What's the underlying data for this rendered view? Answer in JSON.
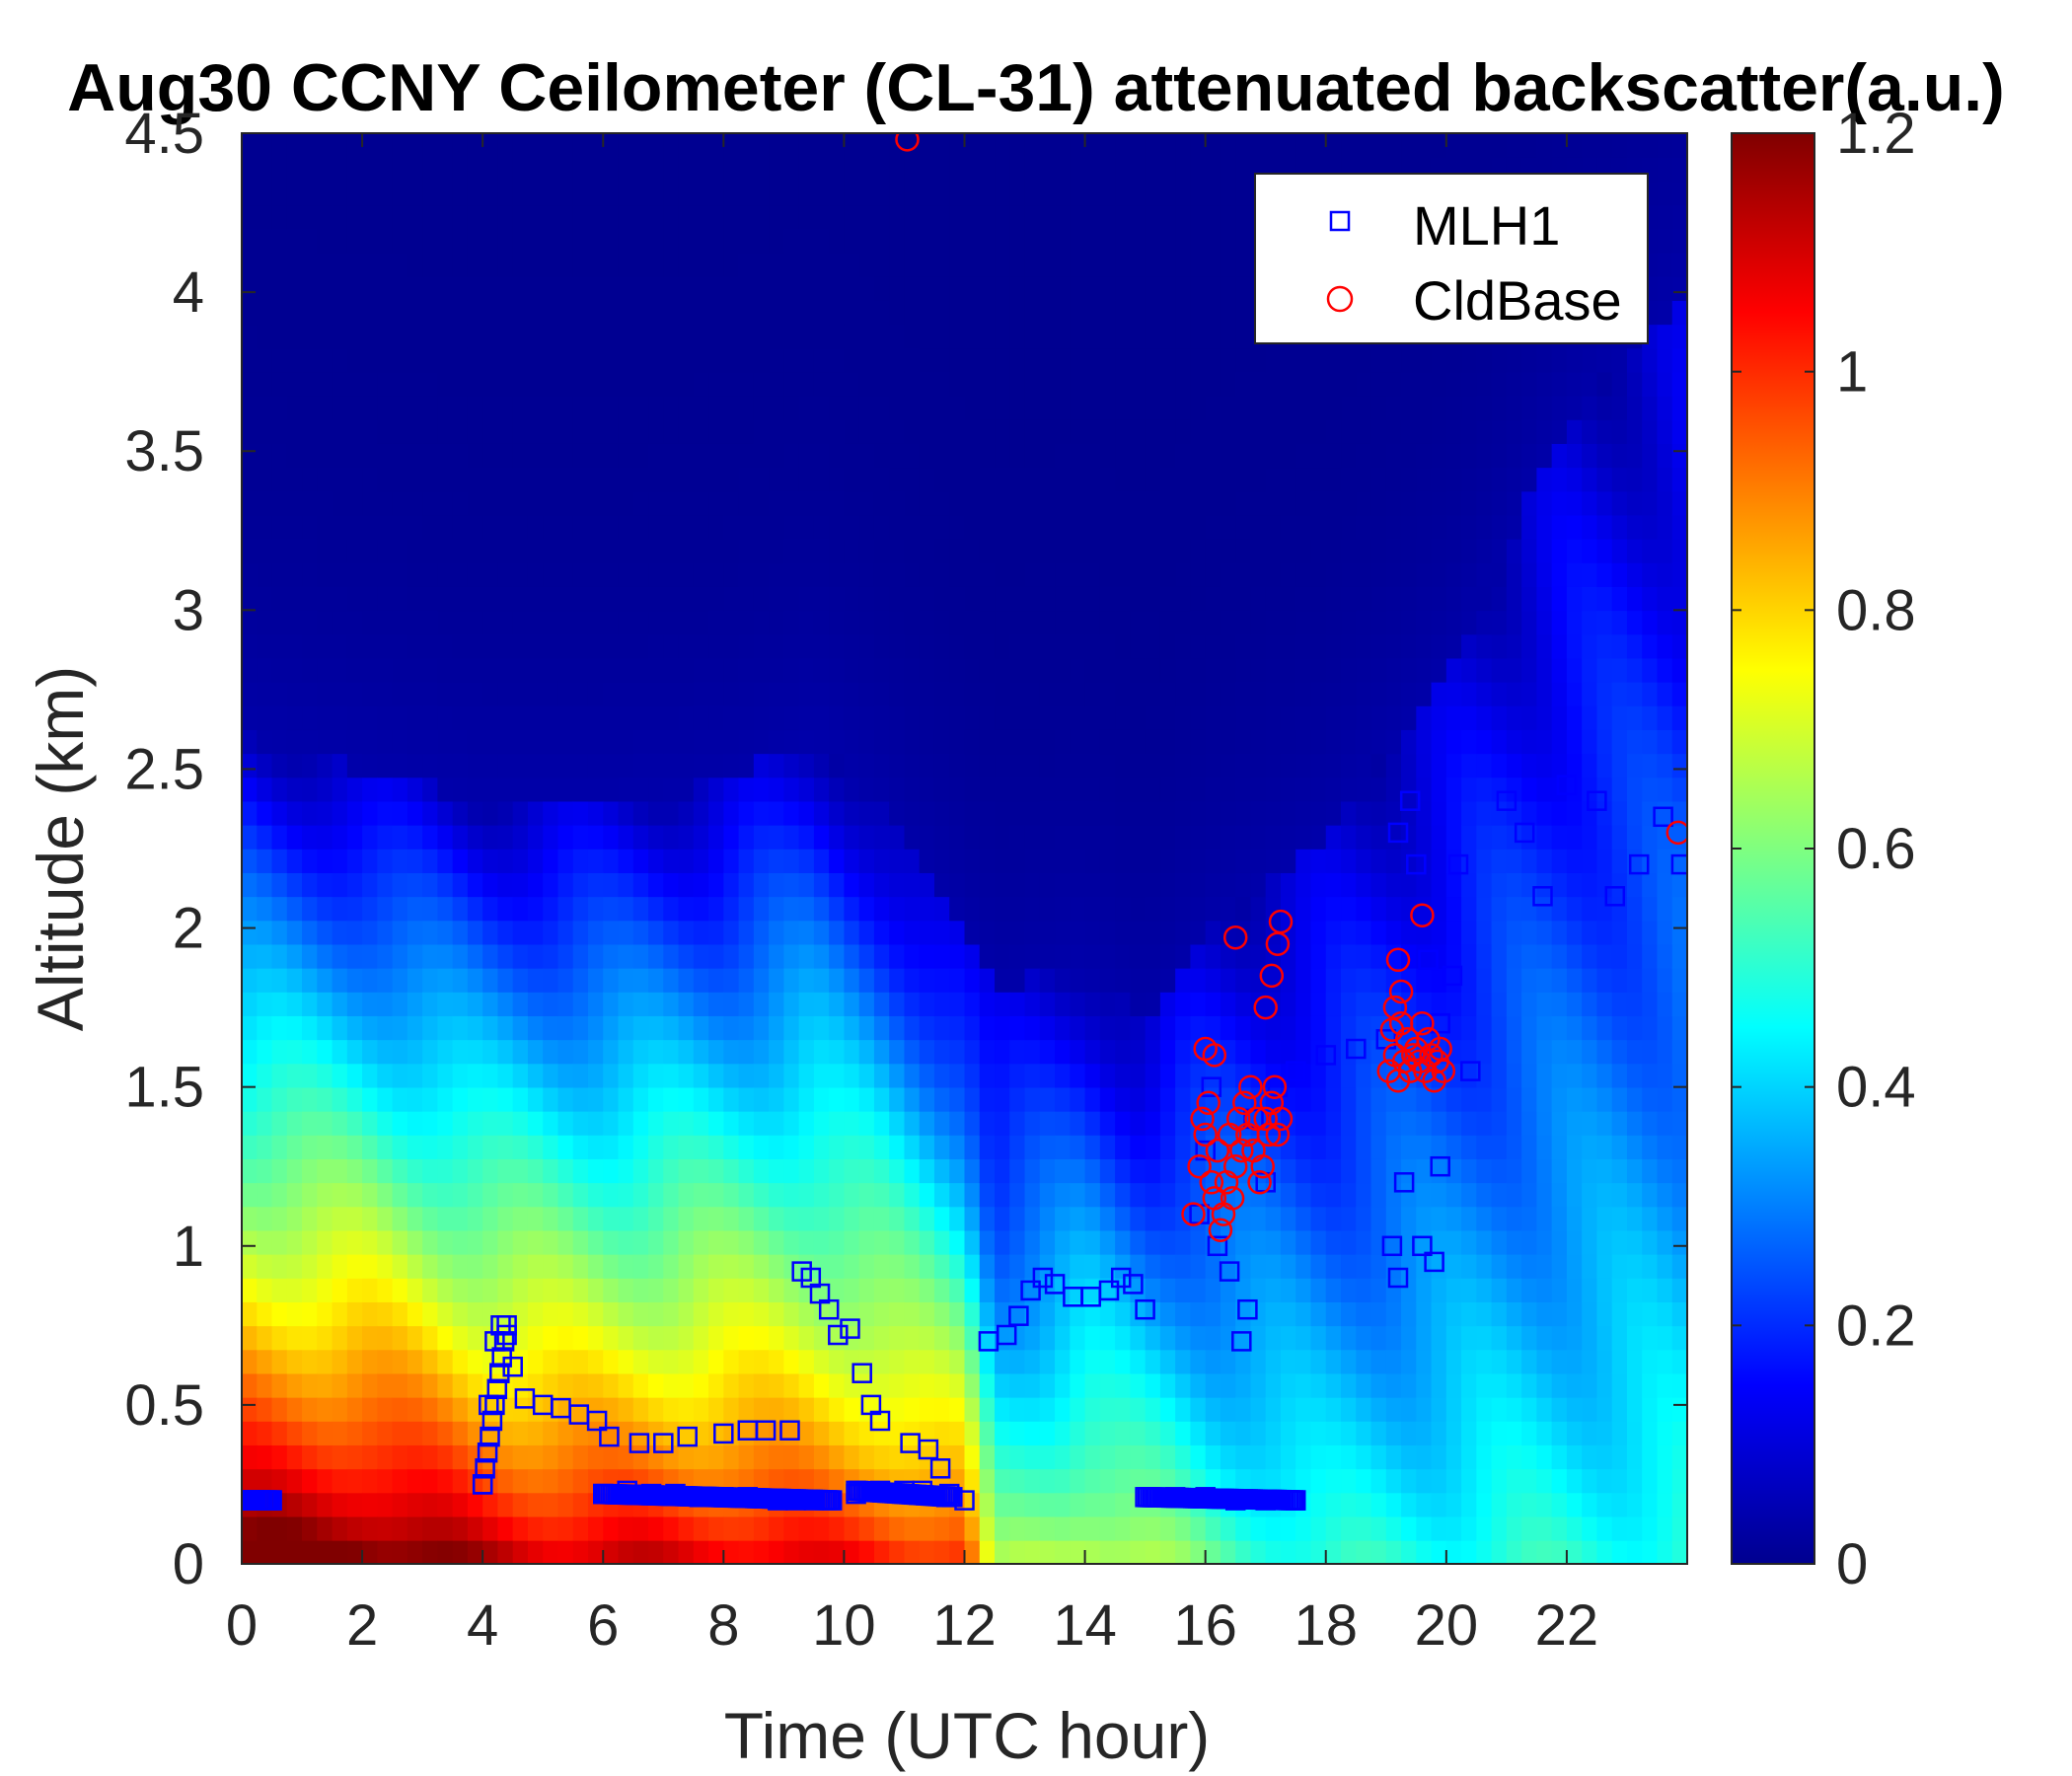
{
  "chart_data": {
    "type": "heatmap",
    "title": "Aug30 CCNY Ceilometer (CL-31) attenuated backscatter(a.u.)",
    "xlabel": "Time (UTC hour)",
    "ylabel": "Altitude (km)",
    "xlim": [
      0,
      24
    ],
    "ylim": [
      0,
      4.5
    ],
    "xticks": [
      0,
      2,
      4,
      6,
      8,
      10,
      12,
      14,
      16,
      18,
      20,
      22
    ],
    "xtick_labels": [
      "0",
      "2",
      "4",
      "6",
      "8",
      "10",
      "12",
      "14",
      "16",
      "18",
      "20",
      "22"
    ],
    "yticks": [
      0,
      0.5,
      1,
      1.5,
      2,
      2.5,
      3,
      3.5,
      4,
      4.5
    ],
    "ytick_labels": [
      "0",
      "0.5",
      "1",
      "1.5",
      "2",
      "2.5",
      "3",
      "3.5",
      "4",
      "4.5"
    ],
    "colorbar": {
      "colormap": "jet",
      "range": [
        0,
        1.2
      ],
      "ticks": [
        0,
        0.2,
        0.4,
        0.6,
        0.8,
        1,
        1.2
      ],
      "tick_labels": [
        "0",
        "0.2",
        "0.4",
        "0.6",
        "0.8",
        "1",
        "1.2"
      ]
    },
    "legend": {
      "location": "top-right",
      "entries": [
        {
          "name": "MLH1",
          "marker": "square",
          "color": "#0000ff"
        },
        {
          "name": "CldBase",
          "marker": "circle",
          "color": "#ff0000"
        }
      ]
    },
    "background_profile": {
      "time": [
        0,
        2,
        4,
        6,
        8,
        9.5,
        10.5,
        12,
        12.5,
        14,
        15,
        16,
        18,
        20,
        22,
        24
      ],
      "surface_value": [
        1.2,
        1.2,
        1.1,
        1.05,
        1.05,
        1.0,
        1.0,
        0.95,
        0.55,
        0.65,
        0.6,
        0.5,
        0.42,
        0.42,
        0.42,
        0.42
      ],
      "aerosol_top_km": [
        2.6,
        2.5,
        2.4,
        2.4,
        2.45,
        2.6,
        2.4,
        2.0,
        1.8,
        1.9,
        1.7,
        2.0,
        2.3,
        2.8,
        3.6,
        4.0
      ]
    },
    "series": [
      {
        "name": "MLH1",
        "marker": "square",
        "color": "#0000ff",
        "x": [
          0,
          0.2,
          0.4,
          0.5,
          4.0,
          4.1,
          4.2,
          4.3,
          4.4,
          4.5,
          4.7,
          5.0,
          5.3,
          5.6,
          5.9,
          6.1,
          6.6,
          7.0,
          7.4,
          8.0,
          8.4,
          8.7,
          9.1,
          9.3,
          9.45,
          9.6,
          9.75,
          9.9,
          10.1,
          10.3,
          10.45,
          10.6,
          11.1,
          11.4,
          11.6,
          11.75,
          6.0,
          6.4,
          6.8,
          7.2,
          7.6,
          8.0,
          8.4,
          8.9,
          9.2,
          9.5,
          10.2,
          10.6,
          11.0,
          11.3,
          11.7,
          12.0,
          12.4,
          12.7,
          12.9,
          13.1,
          13.3,
          13.5,
          13.8,
          14.1,
          14.4,
          14.6,
          14.8,
          15.0,
          15.5,
          16.0,
          16.5,
          17.0,
          17.5,
          15.9,
          16.0,
          16.1,
          16.2,
          16.4,
          16.6,
          16.7,
          16.8,
          17.0,
          17.2,
          17.5,
          18.0,
          18.5,
          19.0,
          19.2,
          19.4,
          19.5,
          19.7,
          19.9,
          20.1,
          20.2,
          20.4,
          21.0,
          21.3,
          21.6,
          22.0,
          22.5,
          22.8,
          23.2,
          23.6,
          23.9,
          19.1,
          19.2,
          19.3,
          19.6,
          19.8,
          19.9
        ],
        "y": [
          0.2,
          0.2,
          0.2,
          0.2,
          0.25,
          0.5,
          0.7,
          0.75,
          0.72,
          0.62,
          0.52,
          0.5,
          0.49,
          0.47,
          0.45,
          0.4,
          0.38,
          0.38,
          0.4,
          0.41,
          0.42,
          0.42,
          0.42,
          0.92,
          0.9,
          0.85,
          0.8,
          0.72,
          0.74,
          0.6,
          0.5,
          0.45,
          0.38,
          0.36,
          0.3,
          0.22,
          0.22,
          0.23,
          0.22,
          0.22,
          0.21,
          0.21,
          0.21,
          0.2,
          0.2,
          0.2,
          0.22,
          0.23,
          0.23,
          0.23,
          0.21,
          0.2,
          0.7,
          0.72,
          0.78,
          0.86,
          0.9,
          0.88,
          0.84,
          0.84,
          0.86,
          0.9,
          0.88,
          0.8,
          0.21,
          0.21,
          0.2,
          0.2,
          0.2,
          1.1,
          1.3,
          1.5,
          1.0,
          0.92,
          0.7,
          0.8,
          1.4,
          1.2,
          1.5,
          1.55,
          1.6,
          1.62,
          1.65,
          2.3,
          2.4,
          2.2,
          1.9,
          1.7,
          1.85,
          2.2,
          1.55,
          2.4,
          2.3,
          2.1,
          2.45,
          2.4,
          2.1,
          2.2,
          2.35,
          2.2,
          1.0,
          0.9,
          1.2,
          1.0,
          0.95,
          1.25
        ],
        "grouped_segments": [
          {
            "x0": 0.0,
            "x1": 0.5,
            "y0": 0.2,
            "y1": 0.2
          },
          {
            "x0": 4.0,
            "x1": 4.4,
            "y0": 0.25,
            "y1": 0.75
          },
          {
            "x0": 6.0,
            "x1": 9.8,
            "y0": 0.22,
            "y1": 0.2
          },
          {
            "x0": 10.2,
            "x1": 11.8,
            "y0": 0.23,
            "y1": 0.21
          },
          {
            "x0": 15.0,
            "x1": 17.5,
            "y0": 0.21,
            "y1": 0.2
          }
        ]
      },
      {
        "name": "CldBase",
        "marker": "circle",
        "color": "#ff0000",
        "x": [
          11.05,
          15.8,
          15.9,
          15.95,
          16.0,
          16.05,
          16.1,
          16.15,
          16.2,
          16.25,
          16.3,
          16.35,
          16.4,
          16.45,
          16.5,
          16.55,
          16.6,
          16.65,
          16.7,
          16.75,
          16.8,
          16.85,
          16.9,
          16.95,
          17.0,
          17.05,
          17.1,
          17.15,
          17.2,
          17.25,
          16.5,
          17.0,
          17.1,
          17.2,
          17.25,
          16.0,
          16.15,
          19.05,
          19.1,
          19.15,
          19.2,
          19.25,
          19.3,
          19.35,
          19.4,
          19.45,
          19.5,
          19.55,
          19.6,
          19.65,
          19.7,
          19.75,
          19.8,
          19.85,
          19.9,
          19.95,
          19.2,
          19.6,
          19.15,
          19.25,
          23.85
        ],
        "y": [
          4.48,
          1.1,
          1.25,
          1.4,
          1.35,
          1.45,
          1.2,
          1.15,
          1.3,
          1.05,
          1.1,
          1.2,
          1.35,
          1.15,
          1.25,
          1.4,
          1.3,
          1.45,
          1.35,
          1.5,
          1.3,
          1.4,
          1.2,
          1.25,
          1.4,
          1.35,
          1.45,
          1.5,
          1.35,
          1.4,
          1.97,
          1.75,
          1.85,
          1.95,
          2.02,
          1.62,
          1.6,
          1.55,
          1.68,
          1.6,
          1.52,
          1.7,
          1.58,
          1.65,
          1.55,
          1.6,
          1.62,
          1.58,
          1.7,
          1.55,
          1.65,
          1.6,
          1.52,
          1.58,
          1.62,
          1.55,
          1.9,
          2.04,
          1.75,
          1.8,
          2.3
        ]
      }
    ]
  }
}
